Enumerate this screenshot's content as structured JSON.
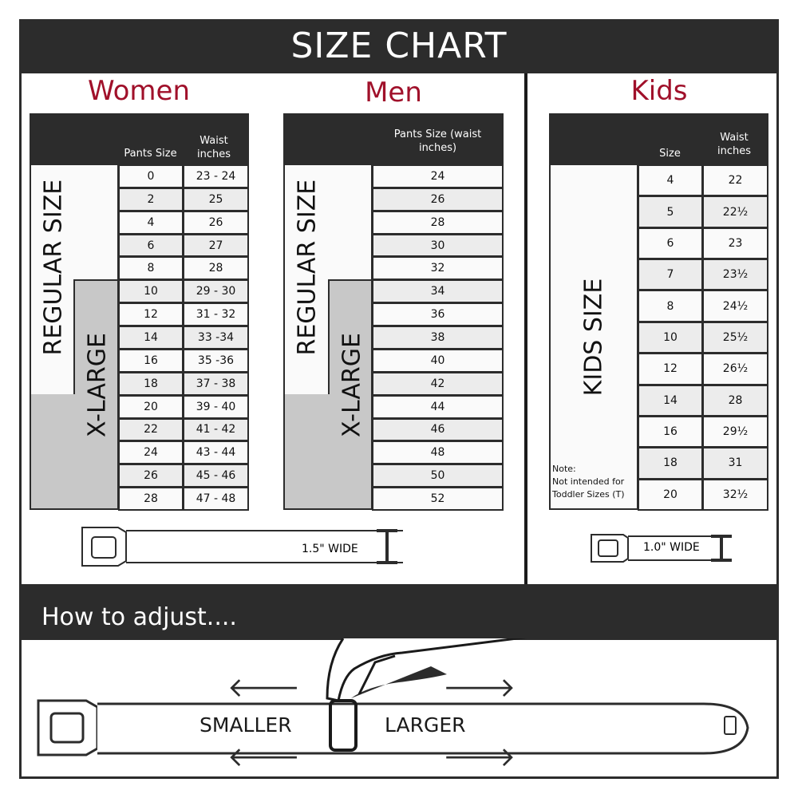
{
  "title": "SIZE CHART",
  "women": {
    "title": "Women",
    "col_label_size": "Pants Size",
    "col_label_waist": "Waist inches",
    "regular_label": "REGULAR SIZE",
    "xlarge_label": "X-LARGE",
    "sizes": [
      "0",
      "2",
      "4",
      "6",
      "8",
      "10",
      "12",
      "14",
      "16",
      "18",
      "20",
      "22",
      "24",
      "26",
      "28"
    ],
    "waist": [
      "23 - 24",
      "25",
      "26",
      "27",
      "28",
      "29 - 30",
      "31 - 32",
      "33 -34",
      "35 -36",
      "37 - 38",
      "39 - 40",
      "41 - 42",
      "43 - 44",
      "45 - 46",
      "47 - 48"
    ],
    "belt_width": "1.5\" WIDE"
  },
  "men": {
    "title": "Men",
    "col_label": "Pants Size (waist inches)",
    "regular_label": "REGULAR SIZE",
    "xlarge_label": "X-LARGE",
    "sizes": [
      "24",
      "26",
      "28",
      "30",
      "32",
      "34",
      "36",
      "38",
      "40",
      "42",
      "44",
      "46",
      "48",
      "50",
      "52"
    ]
  },
  "kids": {
    "title": "Kids",
    "col_label_size": "Size",
    "col_label_waist": "Waist inches",
    "label": "KIDS SIZE",
    "note_title": "Note:",
    "note_text": "Not intended for Toddler Sizes (T)",
    "sizes": [
      "4",
      "5",
      "6",
      "7",
      "8",
      "10",
      "12",
      "14",
      "16",
      "18",
      "20"
    ],
    "waist": [
      "22",
      "22½",
      "23",
      "23½",
      "24½",
      "25½",
      "26½",
      "28",
      "29½",
      "31",
      "32½"
    ],
    "belt_width": "1.0\" WIDE"
  },
  "adjust": {
    "title": "How to adjust....",
    "smaller": "SMALLER",
    "larger": "LARGER"
  },
  "colors": {
    "accent": "#a0102a",
    "dark": "#2c2c2c",
    "xlarge_fill": "#c8c8c8"
  }
}
